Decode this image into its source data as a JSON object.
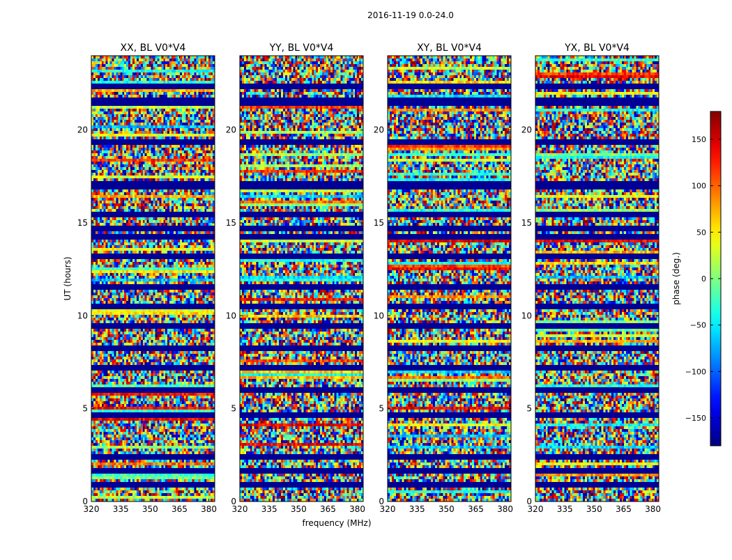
{
  "figure": {
    "suptitle": "2016-11-19 0.0-24.0"
  },
  "chart_data": [
    {
      "type": "heatmap",
      "title": "XX, BL V0*V4",
      "xlabel": "",
      "ylabel": "UT (hours)",
      "xlim": [
        320,
        383
      ],
      "ylim": [
        0,
        24
      ],
      "xticks": [
        320,
        335,
        350,
        365,
        380
      ],
      "yticks": [
        0,
        5,
        10,
        15,
        20
      ],
      "flagged_utc_hours": [
        0.9,
        1.6,
        2.45,
        4.6,
        6.0,
        7.2,
        8.3,
        9.5,
        10.5,
        11.5,
        13.2,
        14.2,
        14.7,
        15.5,
        16.9,
        17.1,
        19.4,
        21.5,
        21.6,
        22.3
      ],
      "z_note": "per-pixel phase noise (deg), range -180 to 180"
    },
    {
      "type": "heatmap",
      "title": "YY, BL V0*V4",
      "xlabel": "frequency (MHz)",
      "ylabel": "",
      "xlim": [
        320,
        383
      ],
      "ylim": [
        0,
        24
      ],
      "xticks": [
        320,
        335,
        350,
        365,
        380
      ],
      "yticks": [
        0,
        5,
        10,
        15,
        20
      ],
      "flagged_utc_hours": [
        0.9,
        1.6,
        2.45,
        4.6,
        6.0,
        7.2,
        8.3,
        9.5,
        10.5,
        11.5,
        13.2,
        14.2,
        14.7,
        15.5,
        16.9,
        17.1,
        19.4,
        21.5,
        21.6,
        22.3
      ],
      "z_note": "per-pixel phase noise (deg), range -180 to 180"
    },
    {
      "type": "heatmap",
      "title": "XY, BL V0*V4",
      "xlabel": "",
      "ylabel": "",
      "xlim": [
        320,
        383
      ],
      "ylim": [
        0,
        24
      ],
      "xticks": [
        320,
        335,
        350,
        365,
        380
      ],
      "yticks": [
        0,
        5,
        10,
        15,
        20
      ],
      "flagged_utc_hours": [
        0.9,
        1.6,
        2.45,
        4.6,
        6.0,
        7.2,
        8.3,
        9.5,
        10.5,
        11.5,
        13.2,
        14.2,
        14.7,
        15.5,
        16.9,
        17.1,
        19.4,
        21.5,
        21.6,
        22.3
      ],
      "z_note": "per-pixel phase noise (deg), range -180 to 180"
    },
    {
      "type": "heatmap",
      "title": "YX, BL V0*V4",
      "xlabel": "",
      "ylabel": "",
      "xlim": [
        320,
        383
      ],
      "ylim": [
        0,
        24
      ],
      "xticks": [
        320,
        335,
        350,
        365,
        380
      ],
      "yticks": [
        0,
        5,
        10,
        15,
        20
      ],
      "flagged_utc_hours": [
        0.9,
        1.6,
        2.45,
        4.6,
        6.0,
        7.2,
        8.3,
        9.5,
        10.5,
        11.5,
        13.2,
        14.2,
        14.7,
        15.5,
        16.9,
        17.1,
        19.4,
        21.5,
        21.6,
        22.3
      ],
      "z_note": "per-pixel phase noise (deg), range -180 to 180"
    }
  ],
  "colorbar": {
    "label": "phase (deg.)",
    "vmin": -180,
    "vmax": 180,
    "ticks": [
      -150,
      -100,
      -50,
      0,
      50,
      100,
      150
    ],
    "colormap": "jet"
  }
}
